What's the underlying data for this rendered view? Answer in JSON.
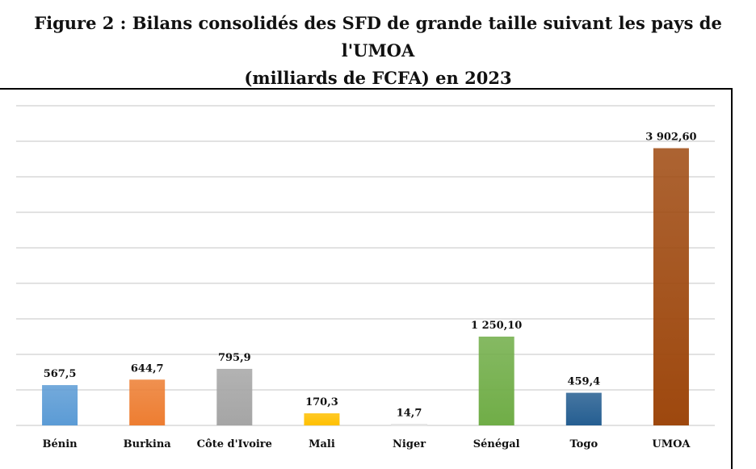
{
  "chart_data": {
    "type": "bar",
    "title": "Figure 2 : Bilans consolidés des SFD de grande taille suivant les pays de l'UMOA",
    "subtitle": "(milliards de FCFA) en 2023",
    "categories": [
      "Bénin",
      "Burkina",
      "Côte d'Ivoire",
      "Mali",
      "Niger",
      "Sénégal",
      "Togo",
      "UMOA"
    ],
    "values": [
      567.5,
      644.7,
      795.9,
      170.3,
      14.7,
      1250.1,
      459.4,
      3902.6
    ],
    "value_labels": [
      "567,5",
      "644,7",
      "795,9",
      "170,3",
      "14,7",
      "1 250,10",
      "459,4",
      "3 902,60"
    ],
    "colors": [
      "#5b9bd5",
      "#ed7d31",
      "#a5a5a5",
      "#ffc000",
      "#f2f2f2",
      "#70ad47",
      "#255e91",
      "#9e480e"
    ],
    "xlabel": "",
    "ylabel": "",
    "ylim": [
      0,
      4500
    ],
    "grid": true,
    "legend": "none"
  }
}
